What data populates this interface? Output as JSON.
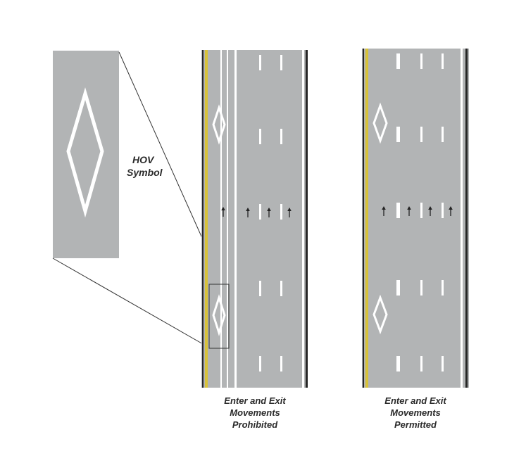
{
  "hov_symbol_label": {
    "line1": "HOV",
    "line2": "Symbol"
  },
  "panels": [
    {
      "id": "prohibited",
      "caption": {
        "line1": "Enter and Exit",
        "line2": "Movements",
        "line3": "Prohibited"
      },
      "hov_lane_separation": "double-white-solid",
      "hov_symbols": 2,
      "lane_arrows": 4
    },
    {
      "id": "permitted",
      "caption": {
        "line1": "Enter and Exit",
        "line2": "Movements",
        "line3": "Permitted"
      },
      "hov_lane_separation": "broken-white",
      "hov_symbols": 2,
      "lane_arrows": 4
    }
  ],
  "colors": {
    "pavement": "#b2b4b5",
    "marking_white": "#ffffff",
    "marking_yellow": "#d8c23a",
    "edge_black": "#262626",
    "arrow": "#222222",
    "callout_line": "#333333"
  },
  "icons": {
    "lane_arrow": "up-arrow-icon",
    "hov": "diamond-icon"
  }
}
